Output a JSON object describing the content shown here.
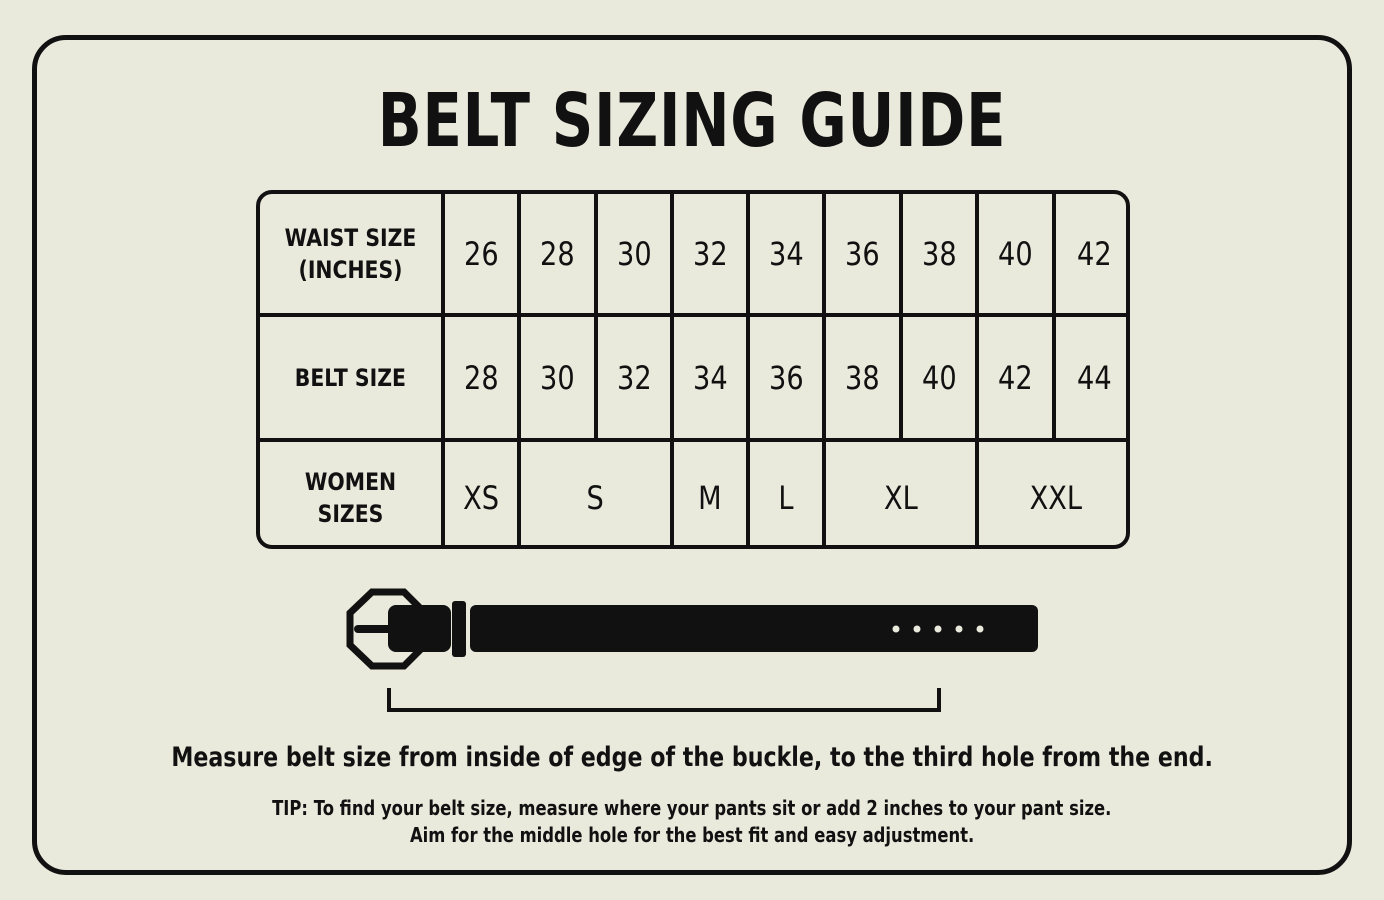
{
  "title": "BELT SIZING GUIDE",
  "table": {
    "row_headers": [
      "WAIST SIZE (INCHES)",
      "BELT SIZE",
      "WOMEN SIZES"
    ],
    "waist": [
      "26",
      "28",
      "30",
      "32",
      "34",
      "36",
      "38",
      "40",
      "42"
    ],
    "belt": [
      "28",
      "30",
      "32",
      "34",
      "36",
      "38",
      "40",
      "42",
      "44"
    ],
    "women": [
      {
        "label": "XS",
        "span": 1
      },
      {
        "label": "S",
        "span": 2
      },
      {
        "label": "M",
        "span": 1
      },
      {
        "label": "L",
        "span": 1
      },
      {
        "label": "XL",
        "span": 2
      },
      {
        "label": "XXL",
        "span": 2
      }
    ]
  },
  "illustration": {
    "icon": "belt-icon",
    "holes": 5
  },
  "instruction": "Measure belt size from inside of edge of the buckle, to the third hole from the end.",
  "tip_line1": "TIP: To find your belt size, measure where your pants sit or add 2 inches to your pant size.",
  "tip_line2": "Aim for the middle hole for the best fit and easy adjustment.",
  "colors": {
    "background": "#e9e9dc",
    "ink": "#111111"
  }
}
